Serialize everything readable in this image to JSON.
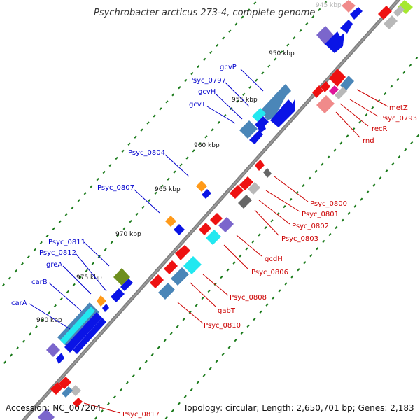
{
  "title": "Psychrobacter arcticus 273-4, complete genome",
  "footer": {
    "accession": "Accession: NC_007204",
    "summary": "Topology: circular; Length: 2,650,701 bp; Genes: 2,183"
  },
  "colors": {
    "backbone": "#7d7d7d",
    "tick": "#1a7a1a",
    "left_label": "#0000cc",
    "right_label": "#cc0000",
    "dark_blue": "#0a14e6",
    "steel_blue": "#4a86b8",
    "cyan": "#22e8f0",
    "red": "#ee1111",
    "salmon": "#f08a8a",
    "gray": "#b8b8b8",
    "dark_gray": "#666666",
    "purple": "#7b66cc",
    "orange": "#ff9a1a",
    "olive": "#6e8f1e",
    "magenta": "#e0139a",
    "lime": "#a6e830"
  },
  "scale_labels": [
    {
      "text": "945 kbp",
      "faint": true
    },
    {
      "text": "950 kbp",
      "faint": false
    },
    {
      "text": "955 kbp",
      "faint": false
    },
    {
      "text": "960 kbp",
      "faint": false
    },
    {
      "text": "965 kbp",
      "faint": false
    },
    {
      "text": "970 kbp",
      "faint": false
    },
    {
      "text": "975 kbp",
      "faint": false
    },
    {
      "text": "980 kbp",
      "faint": false
    }
  ],
  "left_gene_labels": [
    "gcvP",
    "Psyc_0797",
    "gcvH",
    "gcvT",
    "Psyc_0804",
    "Psyc_0807",
    "Psyc_0811",
    "Psyc_0812",
    "greA",
    "carB",
    "carA"
  ],
  "right_gene_labels": [
    "metZ",
    "Psyc_0793",
    "recR",
    "rnd",
    "Psyc_0800",
    "Psyc_0801",
    "Psyc_0802",
    "Psyc_0803",
    "gcdH",
    "Psyc_0806",
    "Psyc_0808",
    "gabT",
    "Psyc_0810",
    "Psyc_0817"
  ]
}
